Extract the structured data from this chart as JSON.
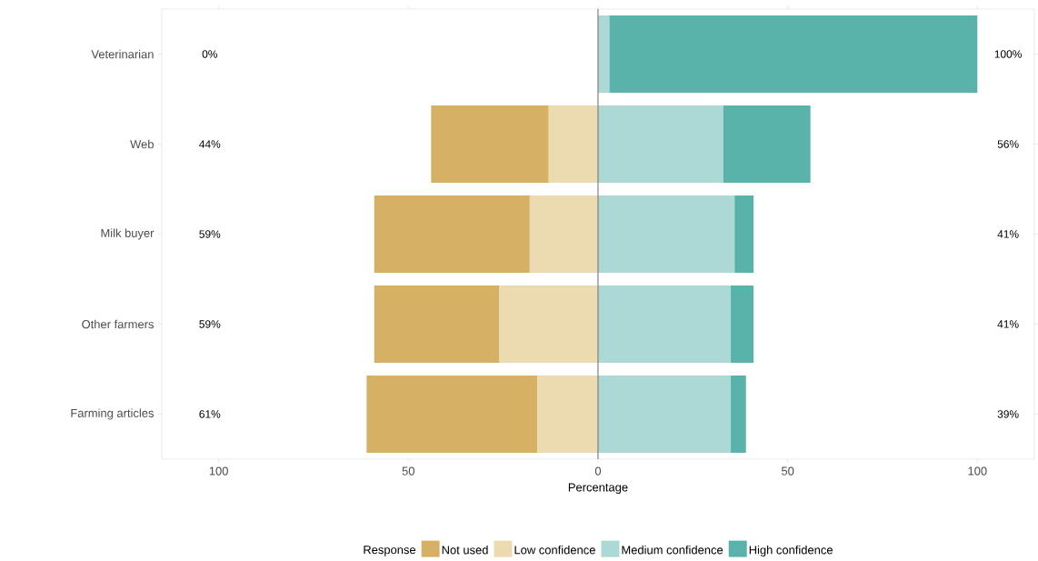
{
  "chart_data": {
    "type": "bar",
    "orientation": "horizontal",
    "stacked": true,
    "xlabel": "Percentage",
    "legend_title": "Response",
    "legend": "bottom",
    "categories": [
      "Veterinarian",
      "Web",
      "Milk buyer",
      "Other farmers",
      "Farming articles"
    ],
    "xlim": [
      -115,
      115
    ],
    "xticks": [
      {
        "value": -100,
        "label": "100"
      },
      {
        "value": -50,
        "label": "50"
      },
      0,
      50,
      100
    ],
    "series": [
      {
        "name": "Not used",
        "color": "#d6b064",
        "values": [
          null,
          31,
          41,
          33,
          45
        ],
        "base": [
          null,
          -44,
          -59,
          -59,
          -61
        ]
      },
      {
        "name": "Low confidence",
        "color": "#ecdab0",
        "values": [
          null,
          13,
          18,
          26,
          16
        ],
        "base": [
          null,
          -13,
          -18,
          -26,
          -16
        ]
      },
      {
        "name": "Medium confidence",
        "color": "#acd9d5",
        "values": [
          3,
          33,
          36,
          35,
          35
        ],
        "base": [
          0,
          0,
          0,
          0,
          0
        ]
      },
      {
        "name": "High confidence",
        "color": "#5ab3aa",
        "values": [
          97,
          23,
          5,
          6,
          4
        ],
        "base": [
          3,
          33,
          36,
          35,
          35
        ]
      }
    ],
    "ref_lines": [
      {
        "axis": "x",
        "value": 0,
        "color": "#808080"
      }
    ],
    "annotations": [
      "0%",
      "100%",
      "44%",
      "56%",
      "59%",
      "41%",
      "59%",
      "41%",
      "61%",
      "39%"
    ]
  }
}
